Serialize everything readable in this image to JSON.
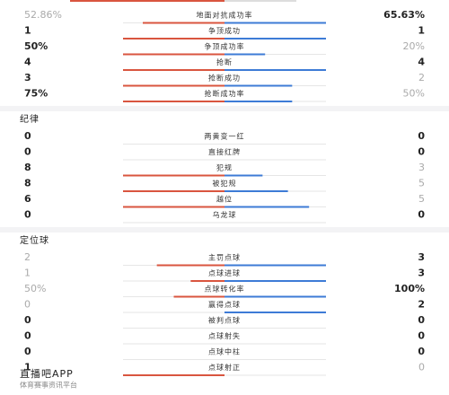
{
  "sections": [
    {
      "rows": [
        {
          "label": "地面对抗成功率",
          "left": 52.86,
          "left_label": "52.86%",
          "right": 65.63,
          "right_label": "65.63%"
        },
        {
          "label": "争顶成功",
          "left": 1,
          "right": 1
        },
        {
          "label": "争顶成功率",
          "left": 50,
          "left_label": "50%",
          "right": 20,
          "right_label": "20%"
        },
        {
          "label": "抢断",
          "left": 4,
          "right": 4
        },
        {
          "label": "抢断成功",
          "left": 3,
          "right": 2
        },
        {
          "label": "抢断成功率",
          "left": 75,
          "left_label": "75%",
          "right": 50,
          "right_label": "50%"
        }
      ]
    },
    {
      "title": "纪律",
      "rows": [
        {
          "label": "两黄变一红",
          "left": 0,
          "right": 0
        },
        {
          "label": "直接红牌",
          "left": 0,
          "right": 0
        },
        {
          "label": "犯规",
          "left": 8,
          "right": 3
        },
        {
          "label": "被犯规",
          "left": 8,
          "right": 5
        },
        {
          "label": "越位",
          "left": 6,
          "right": 5
        },
        {
          "label": "乌龙球",
          "left": 0,
          "right": 0
        }
      ]
    },
    {
      "title": "定位球",
      "rows": [
        {
          "label": "主罚点球",
          "left": 2,
          "right": 3
        },
        {
          "label": "点球进球",
          "left": 1,
          "right": 3
        },
        {
          "label": "点球转化率",
          "left": 50,
          "left_label": "50%",
          "right": 100,
          "right_label": "100%"
        },
        {
          "label": "赢得点球",
          "left": 0,
          "right": 2
        },
        {
          "label": "被判点球",
          "left": 0,
          "right": 0
        },
        {
          "label": "点球射失",
          "left": 0,
          "right": 0
        },
        {
          "label": "点球中柱",
          "left": 0,
          "right": 0
        },
        {
          "label": "点球射正",
          "left": 1,
          "right": 0
        }
      ]
    }
  ],
  "footer": {
    "title": "直播吧APP",
    "subtitle": "体育赛事资讯平台"
  }
}
